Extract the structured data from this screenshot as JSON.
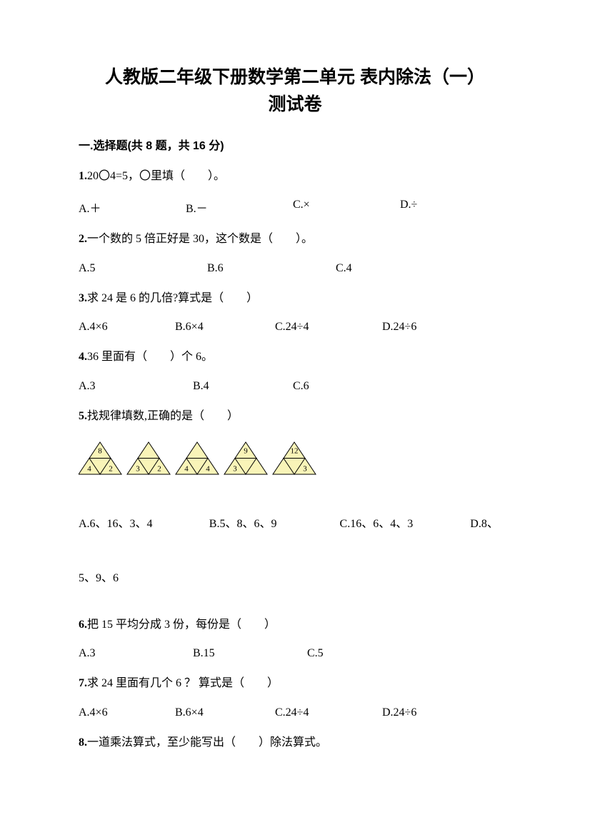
{
  "title_line1": "人教版二年级下册数学第二单元 表内除法（一）",
  "title_line2": "测试卷",
  "section1": "一.选择题(共 8 题，共 16 分)",
  "q1": {
    "num": "1.",
    "text": "20〇4=5，〇里填（　　）。",
    "opts": [
      "A.＋",
      "B.－",
      "C.×",
      "D.÷"
    ]
  },
  "q2": {
    "num": "2.",
    "text": "一个数的 5 倍正好是 30，这个数是（　　）。",
    "opts": [
      "A.5",
      "B.6",
      "C.4"
    ]
  },
  "q3": {
    "num": "3.",
    "text": "求 24 是 6 的几倍?算式是（　　）",
    "opts": [
      "A.4×6",
      "B.6×4",
      "C.24÷4",
      "D.24÷6"
    ]
  },
  "q4": {
    "num": "4.",
    "text": "36 里面有（　　）个 6。",
    "opts": [
      "A.3",
      "B.4",
      "C.6"
    ]
  },
  "q5": {
    "num": "5.",
    "text": "找规律填数,正确的是（　　）",
    "opts_line1": [
      "A.6、16、3、4",
      "B.5、8、6、9",
      "C.16、6、4、3",
      "D.8、"
    ],
    "opts_line2": "5、9、6"
  },
  "q6": {
    "num": "6.",
    "text": "把 15 平均分成 3 份，每份是（　　）",
    "opts": [
      "A.3",
      "B.15",
      "C.5"
    ]
  },
  "q7": {
    "num": "7.",
    "text": "求 24 里面有几个 6 ？ 算式是（　　）",
    "opts": [
      "A.4×6",
      "B.6×4",
      "C.24÷4",
      "D.24÷6"
    ]
  },
  "q8": {
    "num": "8.",
    "text": "一道乘法算式，至少能写出（　　）除法算式。"
  },
  "triangles": {
    "fill": "#f9f4b8",
    "stroke": "#000000",
    "data": [
      {
        "top": "8",
        "left": "4",
        "right": "2"
      },
      {
        "top": "",
        "left": "3",
        "right": "2"
      },
      {
        "top": "",
        "left": "4",
        "right": "4"
      },
      {
        "top": "9",
        "left": "3",
        "right": ""
      },
      {
        "top": "12",
        "left": "",
        "right": "3"
      }
    ]
  }
}
